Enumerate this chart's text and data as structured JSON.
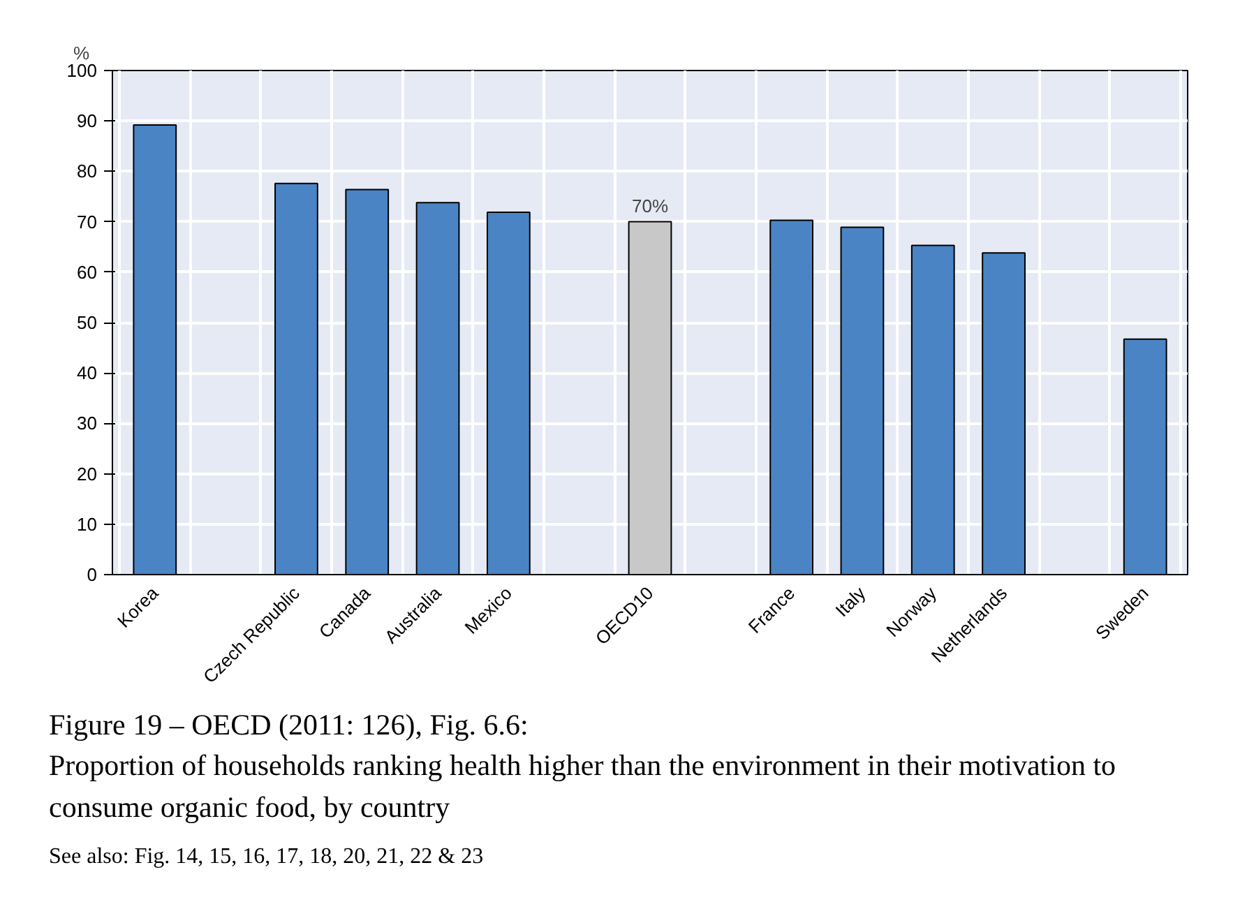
{
  "chart_data": {
    "type": "bar",
    "title": "Figure 19 – OECD (2011: 126), Fig. 6.6:",
    "subtitle": "Proportion of households ranking health higher than the environment in their motivation to consume organic food, by country",
    "ylabel": "%",
    "annotations": [
      "See also: Fig. 14, 15, 16, 17, 18, 20, 21, 22 & 23"
    ],
    "categories": [
      "Korea",
      null,
      "Czech Republic",
      "Canada",
      "Australia",
      "Mexico",
      null,
      "OECD10",
      null,
      "France",
      "Italy",
      "Norway",
      "Netherlands",
      null,
      "Sweden"
    ],
    "values": [
      89.2,
      null,
      77.6,
      76.4,
      73.8,
      71.9,
      null,
      70,
      null,
      70.3,
      68.9,
      65.3,
      63.8,
      null,
      46.7
    ],
    "colors": [
      "#4a84c4",
      "#4a84c4",
      "#4a84c4",
      "#4a84c4",
      "#4a84c4",
      "#4a84c4",
      "#4a84c4",
      "#c8c8c8",
      "#4a84c4",
      "#4a84c4",
      "#4a84c4",
      "#4a84c4",
      "#4a84c4",
      "#4a84c4",
      "#4a84c4"
    ],
    "value_labels": [
      null,
      null,
      null,
      null,
      null,
      null,
      null,
      "70%",
      null,
      null,
      null,
      null,
      null,
      null,
      null
    ],
    "ylim": [
      0,
      100
    ],
    "yticks": [
      0,
      10,
      20,
      30,
      40,
      50,
      60,
      70,
      80,
      90,
      100
    ],
    "grid": true
  }
}
